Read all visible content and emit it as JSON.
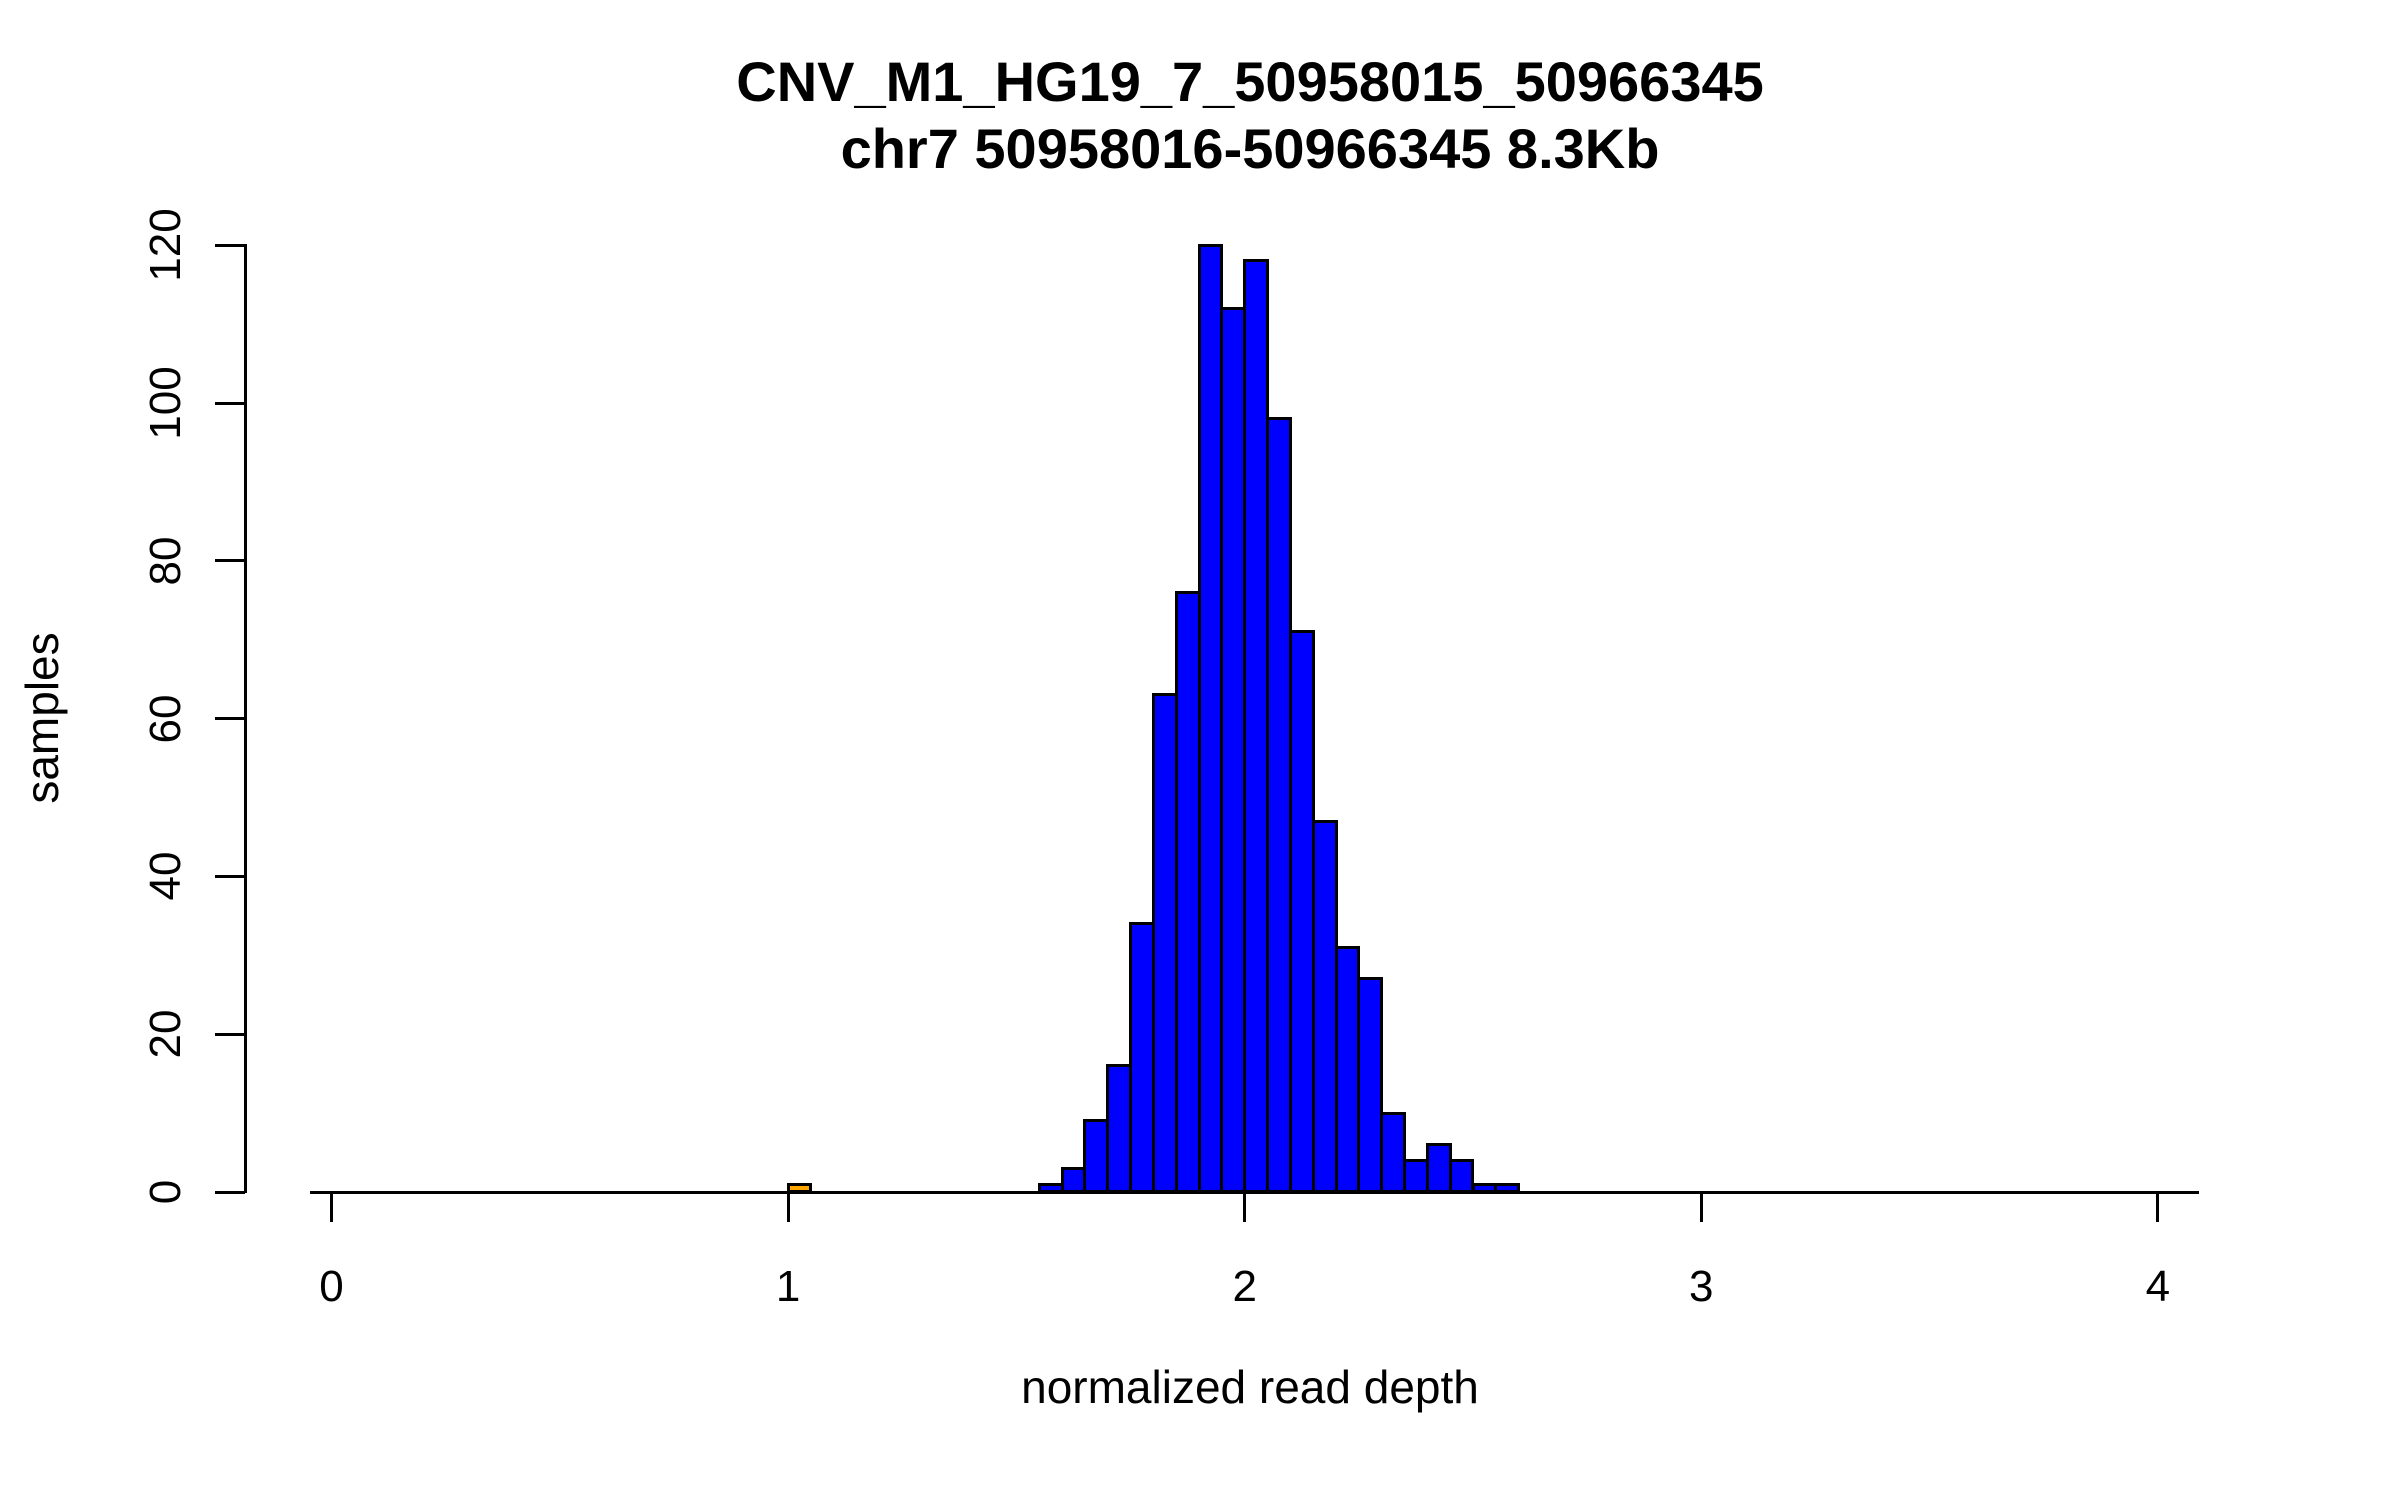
{
  "figure": {
    "title_line1": "CNV_M1_HG19_7_50958015_50966345",
    "title_line2": "chr7 50958016-50966345 8.3Kb"
  },
  "chart_data": {
    "type": "bar",
    "subtype": "histogram",
    "title": "CNV_M1_HG19_7_50958015_50966345",
    "subtitle": "chr7 50958016-50966345 8.3Kb",
    "xlabel": "normalized read depth",
    "ylabel": "samples",
    "xlim": [
      0,
      4.1
    ],
    "ylim": [
      0,
      120
    ],
    "x_ticks": [
      0,
      1,
      2,
      3,
      4
    ],
    "y_ticks": [
      0,
      20,
      40,
      60,
      80,
      100,
      120
    ],
    "grid": "off",
    "legend": "none",
    "bin_width": 0.05,
    "colors": {
      "bar_fill": "#0000FF",
      "outlier_fill": "#FFA500",
      "stroke": "#000000",
      "background": "#FFFFFF"
    },
    "bins": [
      {
        "x0": 1.0,
        "count": 1,
        "color": "#FFA500"
      },
      {
        "x0": 1.55,
        "count": 1,
        "color": "#0000FF"
      },
      {
        "x0": 1.6,
        "count": 3,
        "color": "#0000FF"
      },
      {
        "x0": 1.65,
        "count": 9,
        "color": "#0000FF"
      },
      {
        "x0": 1.7,
        "count": 16,
        "color": "#0000FF"
      },
      {
        "x0": 1.75,
        "count": 34,
        "color": "#0000FF"
      },
      {
        "x0": 1.8,
        "count": 63,
        "color": "#0000FF"
      },
      {
        "x0": 1.85,
        "count": 76,
        "color": "#0000FF"
      },
      {
        "x0": 1.9,
        "count": 120,
        "color": "#0000FF"
      },
      {
        "x0": 1.95,
        "count": 112,
        "color": "#0000FF"
      },
      {
        "x0": 2.0,
        "count": 118,
        "color": "#0000FF"
      },
      {
        "x0": 2.05,
        "count": 98,
        "color": "#0000FF"
      },
      {
        "x0": 2.1,
        "count": 71,
        "color": "#0000FF"
      },
      {
        "x0": 2.15,
        "count": 47,
        "color": "#0000FF"
      },
      {
        "x0": 2.2,
        "count": 31,
        "color": "#0000FF"
      },
      {
        "x0": 2.25,
        "count": 27,
        "color": "#0000FF"
      },
      {
        "x0": 2.3,
        "count": 10,
        "color": "#0000FF"
      },
      {
        "x0": 2.35,
        "count": 4,
        "color": "#0000FF"
      },
      {
        "x0": 2.4,
        "count": 6,
        "color": "#0000FF"
      },
      {
        "x0": 2.45,
        "count": 4,
        "color": "#0000FF"
      },
      {
        "x0": 2.5,
        "count": 1,
        "color": "#0000FF"
      },
      {
        "x0": 2.55,
        "count": 1,
        "color": "#0000FF"
      }
    ]
  }
}
